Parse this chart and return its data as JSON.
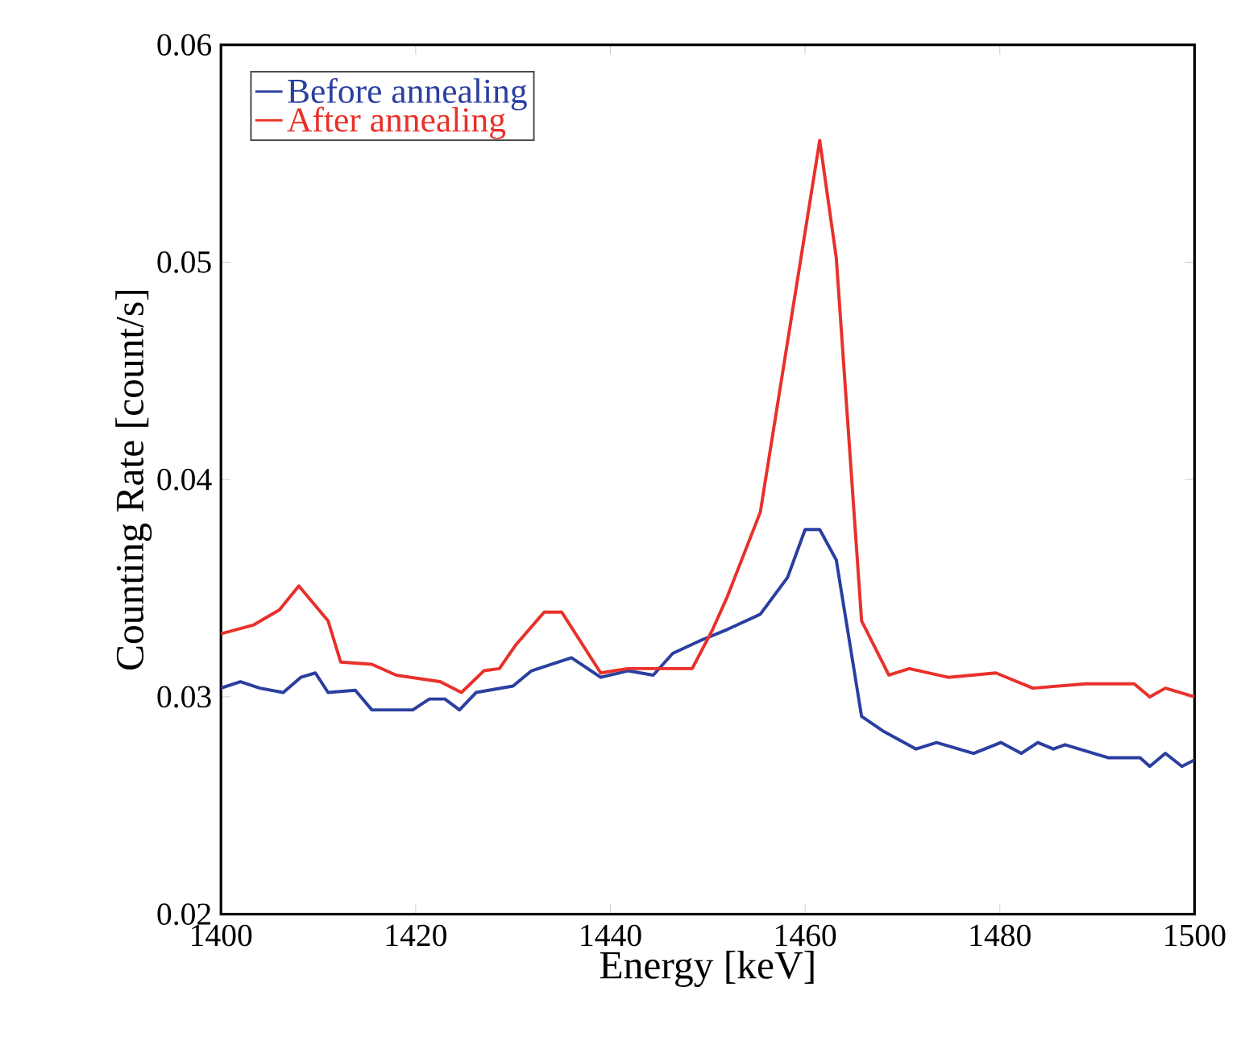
{
  "chart_data": {
    "type": "line",
    "xlabel": "Energy [keV]",
    "ylabel": "Counting Rate [count/s]",
    "xlim": [
      1400,
      1500
    ],
    "ylim": [
      0.02,
      0.06
    ],
    "xticks": [
      1400,
      1420,
      1440,
      1460,
      1480,
      1500
    ],
    "yticks": [
      0.02,
      0.03,
      0.04,
      0.05,
      0.06
    ],
    "grid": false,
    "legend": "top left",
    "marker": "none",
    "line_style": "solid",
    "series": [
      {
        "name": "Before annealing",
        "color": "#2b3fa0",
        "x": [
          1400,
          1402,
          1404,
          1406.4,
          1408.2,
          1409.7,
          1411,
          1413.8,
          1415.5,
          1419.7,
          1421.4,
          1423,
          1424.5,
          1426.2,
          1430,
          1431.9,
          1436,
          1439,
          1441.8,
          1444.4,
          1446.4,
          1449.3,
          1452,
          1455.4,
          1458.2,
          1460,
          1461.5,
          1463.2,
          1465.8,
          1468.1,
          1471.4,
          1473.5,
          1477.3,
          1480.1,
          1482.2,
          1483.9,
          1485.5,
          1486.7,
          1491.1,
          1494.4,
          1495.4,
          1497,
          1498.7,
          1500
        ],
        "values": [
          0.0304,
          0.0307,
          0.0304,
          0.0302,
          0.0309,
          0.0311,
          0.0302,
          0.0303,
          0.0294,
          0.0294,
          0.0299,
          0.0299,
          0.0294,
          0.0302,
          0.0305,
          0.0312,
          0.0318,
          0.0309,
          0.0312,
          0.031,
          0.032,
          0.0326,
          0.0331,
          0.0338,
          0.0355,
          0.0377,
          0.0377,
          0.0363,
          0.0291,
          0.0284,
          0.0276,
          0.0279,
          0.0274,
          0.0279,
          0.0274,
          0.0279,
          0.0276,
          0.0278,
          0.0272,
          0.0272,
          0.0268,
          0.0274,
          0.0268,
          0.0271
        ]
      },
      {
        "name": "After annealing",
        "color": "#e8312a",
        "x": [
          1400,
          1403.3,
          1406,
          1408,
          1411,
          1412.3,
          1415.5,
          1418,
          1422.5,
          1424.7,
          1427,
          1428.6,
          1430.3,
          1433.2,
          1435,
          1439,
          1441.8,
          1444.4,
          1448.4,
          1450.5,
          1452,
          1455.4,
          1461.5,
          1463.2,
          1465.8,
          1468.6,
          1470.7,
          1474.7,
          1479.6,
          1483.4,
          1488.8,
          1493.8,
          1495.4,
          1497,
          1500
        ],
        "values": [
          0.0329,
          0.0333,
          0.034,
          0.0351,
          0.0335,
          0.0316,
          0.0315,
          0.031,
          0.0307,
          0.0302,
          0.0312,
          0.0313,
          0.0324,
          0.0339,
          0.0339,
          0.0311,
          0.0313,
          0.0313,
          0.0313,
          0.0331,
          0.0346,
          0.0385,
          0.0556,
          0.0502,
          0.0335,
          0.031,
          0.0313,
          0.0309,
          0.0311,
          0.0304,
          0.0306,
          0.0306,
          0.03,
          0.0304,
          0.03
        ]
      }
    ]
  }
}
